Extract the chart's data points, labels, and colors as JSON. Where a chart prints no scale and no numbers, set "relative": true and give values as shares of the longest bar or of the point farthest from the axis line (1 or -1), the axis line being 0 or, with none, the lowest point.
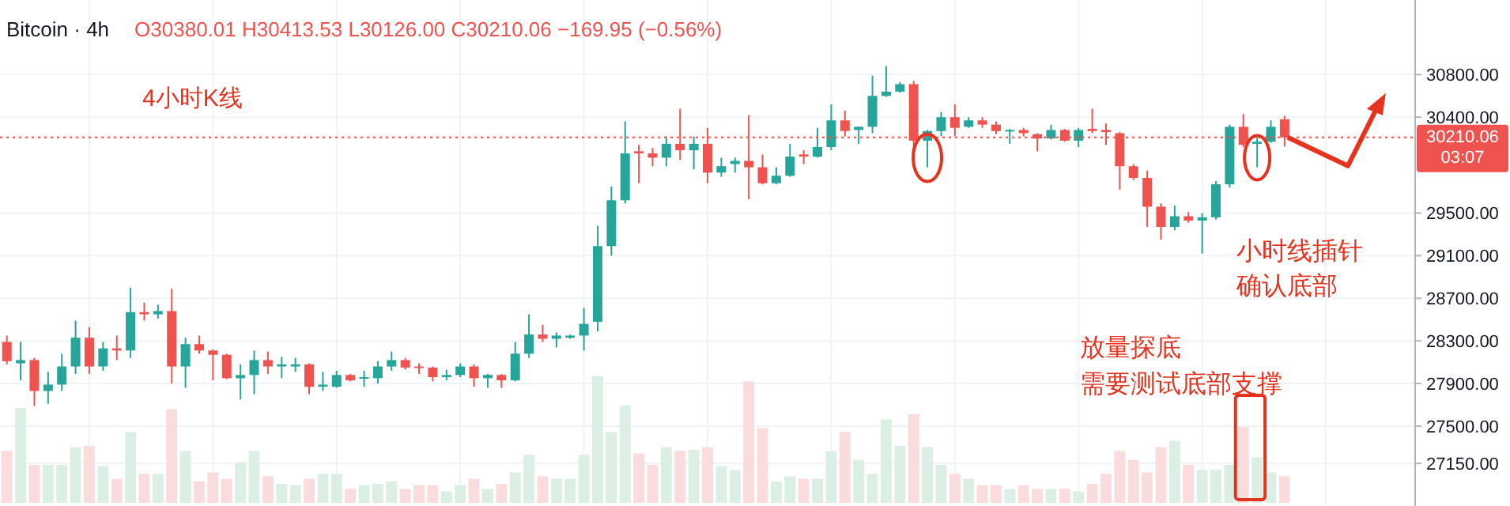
{
  "chart_data": [
    {
      "type": "candlestick",
      "title": "Bitcoin · 4h",
      "subtitle": "O30380.01 H30413.53 L30126.00 C30210.06 −169.95 (−0.56%)",
      "categories": [
        null,
        null,
        null,
        null,
        null,
        null,
        null,
        null,
        null,
        null,
        null,
        null,
        null,
        null,
        null,
        null,
        null,
        null,
        null,
        null,
        null,
        null,
        null,
        null,
        null,
        null,
        null,
        null,
        null,
        null,
        null,
        null,
        null,
        null,
        null,
        null,
        null,
        null,
        null,
        null,
        null,
        null,
        null,
        null,
        null,
        null,
        null,
        null,
        null,
        null,
        null,
        null,
        null,
        null,
        null,
        null,
        null,
        null,
        null,
        null,
        null,
        null,
        null,
        null,
        null,
        null,
        null,
        null,
        null,
        null,
        null,
        null,
        null,
        null,
        null,
        null,
        null,
        null,
        null,
        null,
        null,
        null,
        null,
        null,
        null,
        null,
        null,
        null,
        null,
        null,
        null,
        null,
        null,
        null,
        null,
        null,
        null,
        null,
        null,
        null,
        null,
        null,
        null
      ],
      "ohlc": [
        [
          28290,
          28350,
          28080,
          28110
        ],
        [
          28090,
          28290,
          27930,
          28120
        ],
        [
          28120,
          28140,
          27690,
          27830
        ],
        [
          27830,
          28010,
          27710,
          27890
        ],
        [
          27890,
          28180,
          27830,
          28060
        ],
        [
          28060,
          28490,
          27990,
          28330
        ],
        [
          28330,
          28430,
          27990,
          28060
        ],
        [
          28060,
          28290,
          28020,
          28230
        ],
        [
          28230,
          28350,
          28120,
          28210
        ],
        [
          28210,
          28800,
          28140,
          28570
        ],
        [
          28570,
          28660,
          28490,
          28550
        ],
        [
          28550,
          28640,
          28510,
          28580
        ],
        [
          28580,
          28790,
          27900,
          28060
        ],
        [
          28060,
          28330,
          27860,
          28270
        ],
        [
          28270,
          28350,
          28180,
          28210
        ],
        [
          28210,
          28220,
          27930,
          28170
        ],
        [
          28170,
          28180,
          27940,
          27950
        ],
        [
          27950,
          28080,
          27750,
          27980
        ],
        [
          27980,
          28210,
          27800,
          28120
        ],
        [
          28120,
          28200,
          27990,
          28060
        ],
        [
          28060,
          28150,
          27950,
          28080
        ],
        [
          28060,
          28140,
          28010,
          28080
        ],
        [
          28080,
          28090,
          27800,
          27870
        ],
        [
          27870,
          28010,
          27830,
          27890
        ],
        [
          27870,
          28020,
          27860,
          27980
        ],
        [
          27980,
          27990,
          27920,
          27930
        ],
        [
          27950,
          28020,
          27870,
          27960
        ],
        [
          27950,
          28110,
          27900,
          28060
        ],
        [
          28060,
          28200,
          28020,
          28120
        ],
        [
          28120,
          28140,
          28030,
          28050
        ],
        [
          28060,
          28090,
          27990,
          28050
        ],
        [
          28050,
          28060,
          27920,
          27960
        ],
        [
          27960,
          28030,
          27930,
          27980
        ],
        [
          27980,
          28090,
          27960,
          28060
        ],
        [
          28060,
          28080,
          27870,
          27950
        ],
        [
          27950,
          27990,
          27860,
          27980
        ],
        [
          27980,
          27990,
          27860,
          27930
        ],
        [
          27930,
          28290,
          27920,
          28180
        ],
        [
          28180,
          28550,
          28140,
          28360
        ],
        [
          28360,
          28450,
          28290,
          28320
        ],
        [
          28320,
          28380,
          28240,
          28350
        ],
        [
          28330,
          28360,
          28320,
          28350
        ],
        [
          28350,
          28610,
          28210,
          28460
        ],
        [
          28480,
          29380,
          28390,
          29190
        ],
        [
          29190,
          29750,
          29100,
          29620
        ],
        [
          29620,
          30360,
          29590,
          30060
        ],
        [
          30080,
          30140,
          29780,
          30060
        ],
        [
          30060,
          30110,
          29940,
          30020
        ],
        [
          30020,
          30220,
          29940,
          30150
        ],
        [
          30150,
          30480,
          30000,
          30090
        ],
        [
          30090,
          30220,
          29910,
          30150
        ],
        [
          30150,
          30300,
          29780,
          29880
        ],
        [
          29880,
          30020,
          29840,
          29940
        ],
        [
          29960,
          30020,
          29880,
          29990
        ],
        [
          29990,
          30420,
          29630,
          29930
        ],
        [
          29930,
          30050,
          29770,
          29780
        ],
        [
          29780,
          29930,
          29770,
          29850
        ],
        [
          29850,
          30150,
          29840,
          30030
        ],
        [
          30050,
          30090,
          29960,
          30030
        ],
        [
          30030,
          30300,
          30020,
          30120
        ],
        [
          30120,
          30520,
          30090,
          30370
        ],
        [
          30370,
          30460,
          30220,
          30270
        ],
        [
          30280,
          30310,
          30150,
          30310
        ],
        [
          30310,
          30790,
          30250,
          30600
        ],
        [
          30600,
          30880,
          30590,
          30640
        ],
        [
          30640,
          30730,
          30630,
          30710
        ],
        [
          30710,
          30740,
          30060,
          30180
        ],
        [
          30180,
          30280,
          29930,
          30270
        ],
        [
          30270,
          30450,
          30220,
          30400
        ],
        [
          30400,
          30520,
          30220,
          30300
        ],
        [
          30310,
          30400,
          30300,
          30370
        ],
        [
          30370,
          30400,
          30300,
          30330
        ],
        [
          30330,
          30360,
          30240,
          30270
        ],
        [
          30270,
          30290,
          30150,
          30280
        ],
        [
          30280,
          30300,
          30220,
          30250
        ],
        [
          30240,
          30250,
          30080,
          30200
        ],
        [
          30200,
          30330,
          30190,
          30280
        ],
        [
          30280,
          30290,
          30170,
          30180
        ],
        [
          30180,
          30300,
          30120,
          30280
        ],
        [
          30290,
          30480,
          30250,
          30270
        ],
        [
          30280,
          30340,
          30140,
          30260
        ],
        [
          30250,
          30260,
          29720,
          29940
        ],
        [
          29940,
          29960,
          29810,
          29830
        ],
        [
          29830,
          29900,
          29370,
          29560
        ],
        [
          29560,
          29590,
          29250,
          29370
        ],
        [
          29370,
          29570,
          29340,
          29470
        ],
        [
          29470,
          29510,
          29410,
          29430
        ],
        [
          29430,
          29500,
          29120,
          29460
        ],
        [
          29460,
          29800,
          29440,
          29770
        ],
        [
          29770,
          30330,
          29740,
          30310
        ],
        [
          30310,
          30430,
          30120,
          30140
        ],
        [
          30150,
          30210,
          29930,
          30170
        ],
        [
          30170,
          30370,
          30160,
          30310
        ],
        [
          30380.01,
          30413.53,
          30126.0,
          30210.06
        ],
        null,
        null,
        null,
        null,
        null,
        null,
        null,
        null,
        null
      ],
      "colors": [
        "#ef5350",
        "#26a69a",
        "#ef5350",
        "#26a69a",
        "#26a69a",
        "#26a69a",
        "#ef5350",
        "#26a69a",
        "#ef5350",
        "#26a69a",
        "#ef5350",
        "#26a69a",
        "#ef5350",
        "#26a69a",
        "#ef5350",
        "#ef5350",
        "#ef5350",
        "#26a69a",
        "#26a69a",
        "#ef5350",
        "#26a69a",
        "#26a69a",
        "#ef5350",
        "#26a69a",
        "#26a69a",
        "#ef5350",
        "#26a69a",
        "#26a69a",
        "#26a69a",
        "#ef5350",
        "#ef5350",
        "#ef5350",
        "#26a69a",
        "#26a69a",
        "#ef5350",
        "#26a69a",
        "#ef5350",
        "#26a69a",
        "#26a69a",
        "#ef5350",
        "#26a69a",
        "#26a69a",
        "#26a69a",
        "#26a69a",
        "#26a69a",
        "#26a69a",
        "#ef5350",
        "#ef5350",
        "#26a69a",
        "#ef5350",
        "#26a69a",
        "#ef5350",
        "#26a69a",
        "#26a69a",
        "#ef5350",
        "#ef5350",
        "#26a69a",
        "#26a69a",
        "#ef5350",
        "#26a69a",
        "#26a69a",
        "#ef5350",
        "#26a69a",
        "#26a69a",
        "#26a69a",
        "#26a69a",
        "#ef5350",
        "#26a69a",
        "#26a69a",
        "#ef5350",
        "#26a69a",
        "#ef5350",
        "#ef5350",
        "#26a69a",
        "#ef5350",
        "#ef5350",
        "#26a69a",
        "#ef5350",
        "#26a69a",
        "#ef5350",
        "#ef5350",
        "#ef5350",
        "#ef5350",
        "#ef5350",
        "#ef5350",
        "#26a69a",
        "#ef5350",
        "#26a69a",
        "#26a69a",
        "#26a69a",
        "#ef5350",
        "#26a69a",
        "#26a69a",
        "#ef5350",
        null,
        null,
        null,
        null,
        null,
        null,
        null,
        null,
        null
      ],
      "ylim": [
        26780,
        31500
      ],
      "yticks": [
        {
          "value": 27150,
          "label": "27150.00"
        },
        {
          "value": 27500,
          "label": "27500.00"
        },
        {
          "value": 27900,
          "label": "27900.00"
        },
        {
          "value": 28300,
          "label": "28300.00"
        },
        {
          "value": 28700,
          "label": "28700.00"
        },
        {
          "value": 29100,
          "label": "29100.00"
        },
        {
          "value": 29500,
          "label": "29500.00"
        },
        {
          "value": 30400,
          "label": "30400.00"
        },
        {
          "value": 30800,
          "label": "30800.00"
        }
      ],
      "grid": true,
      "ref_lines": [
        {
          "axis": "y",
          "value": 30210.06,
          "label": "30210.06\n03:07",
          "color": "#ef5350",
          "line_style": "dotted"
        }
      ],
      "annotations": [
        "4小时K线",
        "小时线插针",
        "确认底部",
        "放量探底",
        "需要测试底部支撑"
      ]
    },
    {
      "type": "bar",
      "relative": true,
      "categories": [
        null,
        null,
        null,
        null,
        null,
        null,
        null,
        null,
        null,
        null,
        null,
        null,
        null,
        null,
        null,
        null,
        null,
        null,
        null,
        null,
        null,
        null,
        null,
        null,
        null,
        null,
        null,
        null,
        null,
        null,
        null,
        null,
        null,
        null,
        null,
        null,
        null,
        null,
        null,
        null,
        null,
        null,
        null,
        null,
        null,
        null,
        null,
        null,
        null,
        null,
        null,
        null,
        null,
        null,
        null,
        null,
        null,
        null,
        null,
        null,
        null,
        null,
        null,
        null,
        null,
        null,
        null,
        null,
        null,
        null,
        null,
        null,
        null,
        null,
        null,
        null,
        null,
        null,
        null,
        null,
        null,
        null,
        null,
        null,
        null,
        null,
        null,
        null,
        null,
        null,
        null,
        null,
        null,
        null,
        null,
        null,
        null,
        null,
        null,
        null,
        null,
        null,
        null
      ],
      "values": [
        0.41,
        0.75,
        0.3,
        0.3,
        0.3,
        0.44,
        0.45,
        0.29,
        0.19,
        0.56,
        0.23,
        0.23,
        0.74,
        0.41,
        0.17,
        0.24,
        0.19,
        0.32,
        0.41,
        0.21,
        0.15,
        0.14,
        0.19,
        0.23,
        0.23,
        0.11,
        0.14,
        0.15,
        0.17,
        0.11,
        0.14,
        0.14,
        0.09,
        0.14,
        0.19,
        0.11,
        0.15,
        0.24,
        0.38,
        0.21,
        0.19,
        0.19,
        0.38,
        1,
        0.56,
        0.77,
        0.39,
        0.3,
        0.44,
        0.41,
        0.42,
        0.44,
        0.29,
        0.26,
        0.96,
        0.59,
        0.17,
        0.21,
        0.19,
        0.19,
        0.41,
        0.56,
        0.34,
        0.23,
        0.66,
        0.45,
        0.7,
        0.44,
        0.3,
        0.23,
        0.19,
        0.14,
        0.14,
        0.11,
        0.14,
        0.11,
        0.11,
        0.11,
        0.09,
        0.15,
        0.23,
        0.41,
        0.34,
        0.24,
        0.44,
        0.49,
        0.3,
        0.26,
        0.26,
        0.3,
        0.6,
        0.36,
        0.24,
        0.21,
        null,
        null,
        null,
        null,
        null,
        null,
        null,
        null,
        null
      ],
      "colors": [
        "#fbdcdc",
        "#dcefe4",
        "#fbdcdc",
        "#dcefe4",
        "#dcefe4",
        "#dcefe4",
        "#fbdcdc",
        "#dcefe4",
        "#fbdcdc",
        "#dcefe4",
        "#fbdcdc",
        "#dcefe4",
        "#fbdcdc",
        "#dcefe4",
        "#fbdcdc",
        "#fbdcdc",
        "#fbdcdc",
        "#dcefe4",
        "#dcefe4",
        "#fbdcdc",
        "#dcefe4",
        "#dcefe4",
        "#fbdcdc",
        "#dcefe4",
        "#dcefe4",
        "#fbdcdc",
        "#dcefe4",
        "#dcefe4",
        "#dcefe4",
        "#fbdcdc",
        "#fbdcdc",
        "#fbdcdc",
        "#dcefe4",
        "#dcefe4",
        "#fbdcdc",
        "#dcefe4",
        "#fbdcdc",
        "#dcefe4",
        "#dcefe4",
        "#fbdcdc",
        "#dcefe4",
        "#dcefe4",
        "#dcefe4",
        "#dcefe4",
        "#dcefe4",
        "#dcefe4",
        "#fbdcdc",
        "#fbdcdc",
        "#dcefe4",
        "#fbdcdc",
        "#dcefe4",
        "#fbdcdc",
        "#dcefe4",
        "#dcefe4",
        "#fbdcdc",
        "#fbdcdc",
        "#dcefe4",
        "#dcefe4",
        "#fbdcdc",
        "#dcefe4",
        "#dcefe4",
        "#fbdcdc",
        "#dcefe4",
        "#dcefe4",
        "#dcefe4",
        "#dcefe4",
        "#fbdcdc",
        "#dcefe4",
        "#dcefe4",
        "#fbdcdc",
        "#dcefe4",
        "#fbdcdc",
        "#fbdcdc",
        "#dcefe4",
        "#fbdcdc",
        "#fbdcdc",
        "#dcefe4",
        "#fbdcdc",
        "#dcefe4",
        "#fbdcdc",
        "#fbdcdc",
        "#fbdcdc",
        "#fbdcdc",
        "#fbdcdc",
        "#fbdcdc",
        "#dcefe4",
        "#fbdcdc",
        "#dcefe4",
        "#dcefe4",
        "#dcefe4",
        "#fbdcdc",
        "#dcefe4",
        "#dcefe4",
        "#fbdcdc",
        null,
        null,
        null,
        null,
        null,
        null,
        null,
        null,
        null
      ]
    }
  ]
}
